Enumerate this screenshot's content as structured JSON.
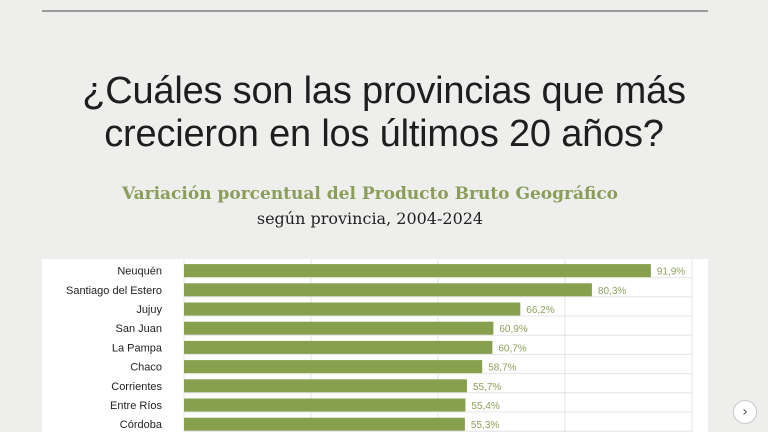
{
  "headline": {
    "line1": "¿Cuáles son las provincias que más",
    "line2": "crecieron en los últimos 20 años?"
  },
  "colors": {
    "bar": "#86a04e",
    "bar_label": "#8da05a",
    "title": "#8a9e5a",
    "grid": "#e4e4e4"
  },
  "carousel": {
    "next_icon": "chevron-right-icon",
    "next_glyph": "›"
  },
  "chart_data": {
    "type": "bar",
    "orientation": "horizontal",
    "title": "Variación porcentual del Producto Bruto Geográfico",
    "subtitle": "según provincia, 2004-2024",
    "unit": "%",
    "xlim": [
      0,
      100
    ],
    "grid": true,
    "categories": [
      "Neuquén",
      "Santiago del Estero",
      "Jujuy",
      "San Juan",
      "La Pampa",
      "Chaco",
      "Corrientes",
      "Entre Ríos",
      "Córdoba"
    ],
    "values": [
      91.9,
      80.3,
      66.2,
      60.9,
      60.7,
      58.7,
      55.7,
      55.4,
      55.3
    ],
    "labels": [
      "91,9%",
      "80,3%",
      "66,2%",
      "60,9%",
      "60,7%",
      "58,7%",
      "55,7%",
      "55,4%",
      "55,3%"
    ]
  }
}
